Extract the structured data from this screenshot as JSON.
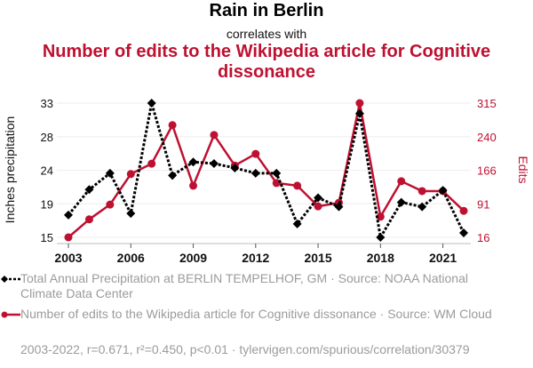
{
  "header": {
    "title": "Rain in Berlin",
    "subtitle": "correlates with",
    "title2": "Number of edits to the Wikipedia article for Cognitive dissonance"
  },
  "colors": {
    "series1": "#000000",
    "series2": "#be1131",
    "grid": "#eeeeee",
    "legend_text": "#9b9b9b"
  },
  "legend": {
    "series1": "Total Annual Precipitation at BERLIN TEMPELHOF, GM · Source: NOAA National Climate Data Center",
    "series2": "Number of edits to the Wikipedia article for Cognitive dissonance · Source: WM Cloud"
  },
  "footnote": "2003-2022, r=0.671, r²=0.450, p<0.01 · tylervigen.com/spurious/correlation/30379",
  "chart_data": {
    "type": "line",
    "title": "Rain in Berlin correlates with Number of edits to the Wikipedia article for Cognitive dissonance",
    "x": [
      2003,
      2004,
      2005,
      2006,
      2007,
      2008,
      2009,
      2010,
      2011,
      2012,
      2013,
      2014,
      2015,
      2016,
      2017,
      2018,
      2019,
      2020,
      2021,
      2022
    ],
    "xlabel": "",
    "x_ticks": [
      "2003",
      "2006",
      "2009",
      "2012",
      "2015",
      "2018",
      "2021"
    ],
    "x_tick_values": [
      2003,
      2006,
      2009,
      2012,
      2015,
      2018,
      2021
    ],
    "xlim": [
      2002.45,
      2022.55
    ],
    "ylabel": "Inches precipitation",
    "ylim": [
      15,
      33
    ],
    "y_ticks": [
      "15",
      "19",
      "24",
      "28",
      "33"
    ],
    "y_tick_values": [
      15,
      19.5,
      24,
      28.5,
      33
    ],
    "y2label": "Edits",
    "y2lim": [
      16,
      315
    ],
    "y2_ticks": [
      "16",
      "91",
      "166",
      "240",
      "315"
    ],
    "y2_tick_values": [
      16,
      90.75,
      165.5,
      240.25,
      315
    ],
    "grid": true,
    "legend_position": "bottom",
    "series": [
      {
        "name": "Total Annual Precipitation at BERLIN TEMPELHOF, GM",
        "axis": "left",
        "style": "dotted-diamond",
        "values": [
          18.0,
          21.4,
          23.6,
          18.2,
          33.0,
          23.3,
          25.1,
          24.9,
          24.3,
          23.6,
          23.6,
          16.8,
          20.3,
          19.1,
          31.6,
          15.0,
          19.7,
          19.1,
          21.3,
          15.6
        ]
      },
      {
        "name": "Number of edits to the Wikipedia article for Cognitive dissonance",
        "axis": "right",
        "style": "solid-circle",
        "values": [
          16,
          56,
          89,
          157,
          180,
          266,
          131,
          244,
          176,
          202,
          137,
          131,
          85,
          93,
          315,
          62,
          141,
          119,
          119,
          75
        ]
      }
    ]
  }
}
